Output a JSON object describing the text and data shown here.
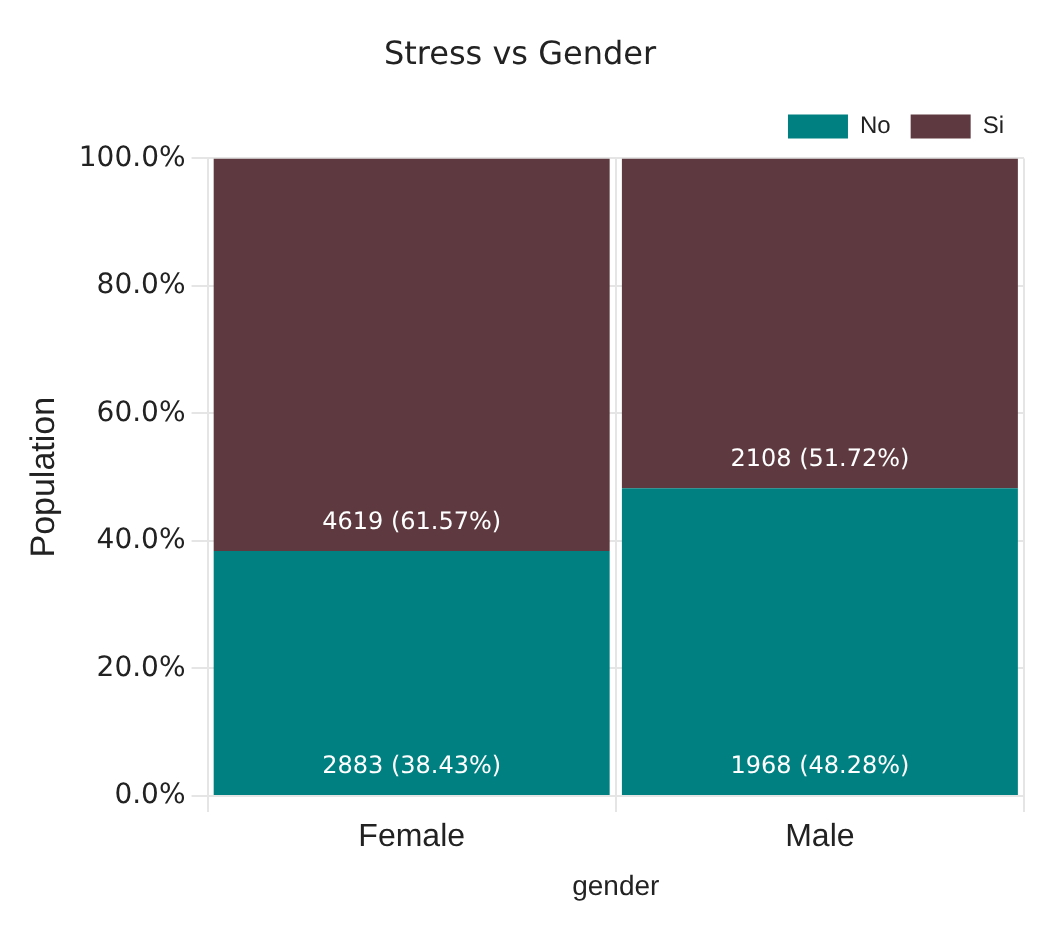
{
  "chart_data": {
    "type": "bar",
    "title": "Stress vs Gender",
    "xlabel": "gender",
    "ylabel": "Population",
    "categories": [
      "Female",
      "Male"
    ],
    "series": [
      {
        "name": "No",
        "color": "#008080",
        "values": [
          38.43,
          48.28
        ],
        "value_labels": [
          "2883 (38.43%)",
          "1968 (48.28%)"
        ]
      },
      {
        "name": "Si",
        "color": "#5e3a40",
        "values": [
          61.57,
          51.72
        ],
        "value_labels": [
          "4619 (61.57%)",
          "2108 (51.72%)"
        ]
      }
    ],
    "stacked": true,
    "ylim": [
      0,
      100
    ],
    "yticks": [
      {
        "value": 0,
        "label": "0.0%"
      },
      {
        "value": 20,
        "label": "20.0%"
      },
      {
        "value": 40,
        "label": "40.0%"
      },
      {
        "value": 60,
        "label": "60.0%"
      },
      {
        "value": 80,
        "label": "80.0%"
      },
      {
        "value": 100,
        "label": "100.0%"
      }
    ],
    "grid": true,
    "legend": "top right"
  }
}
